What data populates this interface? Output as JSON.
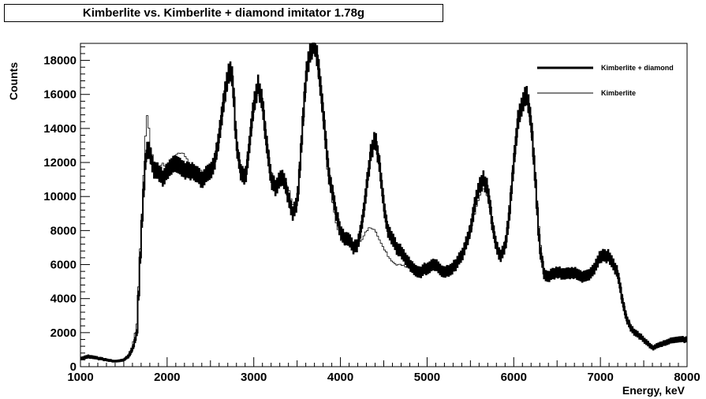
{
  "chart_data": {
    "type": "line",
    "title": "Kimberlite vs. Kimberlite + diamond imitator 1.78g",
    "xlabel": "Energy, keV",
    "ylabel": "Counts",
    "xlim": [
      1000,
      8000
    ],
    "ylim": [
      0,
      19000
    ],
    "x_ticks": [
      1000,
      2000,
      3000,
      4000,
      5000,
      6000,
      7000,
      8000
    ],
    "y_ticks": [
      0,
      2000,
      4000,
      6000,
      8000,
      10000,
      12000,
      14000,
      16000,
      18000
    ],
    "grid": false,
    "legend_position": "top-right",
    "bin_width_keV": 20,
    "series": [
      {
        "name": "Kimberlite + diamond",
        "style": "thick",
        "color": "#000000",
        "x": [
          1000,
          1100,
          1200,
          1300,
          1400,
          1500,
          1550,
          1600,
          1650,
          1700,
          1720,
          1740,
          1760,
          1780,
          1800,
          1850,
          1900,
          1950,
          2000,
          2100,
          2200,
          2300,
          2400,
          2500,
          2550,
          2600,
          2650,
          2700,
          2740,
          2760,
          2780,
          2800,
          2850,
          2900,
          2950,
          3000,
          3050,
          3100,
          3150,
          3200,
          3250,
          3300,
          3350,
          3400,
          3450,
          3500,
          3550,
          3600,
          3650,
          3700,
          3740,
          3780,
          3820,
          3860,
          3900,
          3950,
          4000,
          4050,
          4100,
          4150,
          4200,
          4250,
          4300,
          4350,
          4400,
          4450,
          4500,
          4550,
          4600,
          4650,
          4700,
          4800,
          4900,
          5000,
          5100,
          5200,
          5300,
          5400,
          5500,
          5550,
          5600,
          5650,
          5700,
          5750,
          5800,
          5850,
          5900,
          5950,
          6000,
          6050,
          6100,
          6150,
          6200,
          6250,
          6300,
          6350,
          6400,
          6450,
          6500,
          6600,
          6700,
          6800,
          6900,
          7000,
          7100,
          7200,
          7250,
          7300,
          7350,
          7400,
          7500,
          7600,
          7700,
          7800,
          7900,
          8000
        ],
        "y": [
          500,
          600,
          500,
          400,
          300,
          400,
          600,
          1000,
          2000,
          7500,
          9500,
          11500,
          12500,
          13000,
          12500,
          11500,
          11500,
          11000,
          11500,
          12000,
          11500,
          11500,
          11000,
          11500,
          12000,
          13500,
          15500,
          17000,
          17500,
          16500,
          15000,
          13000,
          11500,
          11000,
          13000,
          15500,
          16500,
          15500,
          13000,
          11000,
          10500,
          11000,
          11000,
          10000,
          9000,
          9500,
          13000,
          17000,
          18500,
          19000,
          18000,
          16000,
          14000,
          11500,
          10500,
          9000,
          8000,
          7500,
          7500,
          7000,
          7200,
          8500,
          10500,
          12500,
          13500,
          12000,
          9500,
          8000,
          7500,
          7000,
          6800,
          6000,
          5500,
          5800,
          6000,
          5500,
          5800,
          6500,
          8000,
          9500,
          10500,
          11000,
          10500,
          8500,
          7000,
          6500,
          7000,
          9000,
          12000,
          14500,
          15500,
          16000,
          14500,
          11000,
          7000,
          5500,
          5200,
          5500,
          5500,
          5500,
          5500,
          5300,
          5500,
          6500,
          6500,
          5500,
          4000,
          2800,
          2300,
          2000,
          1600,
          1100,
          1300,
          1500,
          1600,
          1600
        ]
      },
      {
        "name": "Kimberlite",
        "style": "thin",
        "color": "#000000",
        "x": [
          1000,
          1100,
          1200,
          1300,
          1400,
          1500,
          1550,
          1600,
          1650,
          1700,
          1720,
          1740,
          1760,
          1780,
          1800,
          1850,
          1900,
          1950,
          2000,
          2100,
          2200,
          2300,
          2400,
          2500,
          2550,
          2600,
          2650,
          2700,
          2740,
          2760,
          2780,
          2800,
          2850,
          2900,
          2950,
          3000,
          3050,
          3100,
          3150,
          3200,
          3250,
          3300,
          3350,
          3400,
          3450,
          3500,
          3550,
          3600,
          3650,
          3700,
          3740,
          3780,
          3820,
          3860,
          3900,
          3950,
          4000,
          4050,
          4100,
          4150,
          4200,
          4250,
          4300,
          4350,
          4400,
          4450,
          4500,
          4550,
          4600,
          4650,
          4700,
          4800,
          4900,
          5000,
          5100,
          5200,
          5300,
          5400,
          5500,
          5550,
          5600,
          5650,
          5700,
          5750,
          5800,
          5850,
          5900,
          5950,
          6000,
          6050,
          6100,
          6150,
          6200,
          6250,
          6300,
          6350,
          6400,
          6450,
          6500,
          6600,
          6700,
          6800,
          6900,
          7000,
          7100,
          7200,
          7250,
          7300,
          7350,
          7400,
          7500,
          7600,
          7700,
          7800,
          7900,
          8000
        ],
        "y": [
          400,
          500,
          450,
          400,
          300,
          400,
          700,
          1200,
          2500,
          8000,
          10000,
          12500,
          14500,
          15000,
          13000,
          12000,
          11500,
          12000,
          11500,
          12500,
          12500,
          11500,
          11500,
          11500,
          12000,
          13000,
          15000,
          16500,
          17000,
          16500,
          15000,
          13000,
          11500,
          11500,
          13000,
          15000,
          16000,
          15500,
          13500,
          11500,
          11000,
          11000,
          11000,
          10500,
          9500,
          10000,
          13000,
          16500,
          18000,
          18500,
          17500,
          15500,
          13500,
          11000,
          10000,
          8500,
          7500,
          7200,
          7200,
          7000,
          7100,
          7500,
          8000,
          8200,
          8000,
          7500,
          7000,
          6500,
          6200,
          6000,
          6000,
          5800,
          5800,
          5900,
          6000,
          5800,
          6000,
          6500,
          7800,
          9000,
          10000,
          10500,
          10000,
          8500,
          7000,
          6500,
          7200,
          9500,
          12000,
          14000,
          15500,
          15500,
          14000,
          11000,
          7500,
          5500,
          5300,
          5500,
          5600,
          5600,
          5500,
          5400,
          5500,
          6300,
          6300,
          5500,
          4200,
          3000,
          2400,
          2000,
          1600,
          1200,
          1300,
          1500,
          1600,
          1600
        ]
      }
    ]
  }
}
